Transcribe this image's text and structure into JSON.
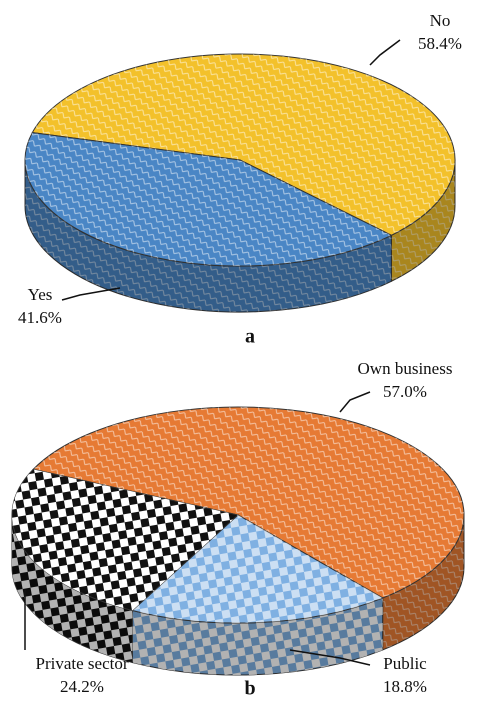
{
  "chart_data": [
    {
      "type": "pie",
      "title": "a",
      "categories": [
        "No",
        "Yes"
      ],
      "values": [
        58.4,
        41.6
      ],
      "value_labels": [
        "58.4%",
        "41.6%"
      ],
      "colors": [
        "#f3c12b",
        "#4a86c5"
      ]
    },
    {
      "type": "pie",
      "title": "b",
      "categories": [
        "Own business",
        "Public",
        "Private sector"
      ],
      "values": [
        57.0,
        18.8,
        24.2
      ],
      "value_labels": [
        "57.0%",
        "18.8%",
        "24.2%"
      ],
      "colors": [
        "#e67a34",
        "#7fb0e2",
        "#111111"
      ]
    }
  ]
}
